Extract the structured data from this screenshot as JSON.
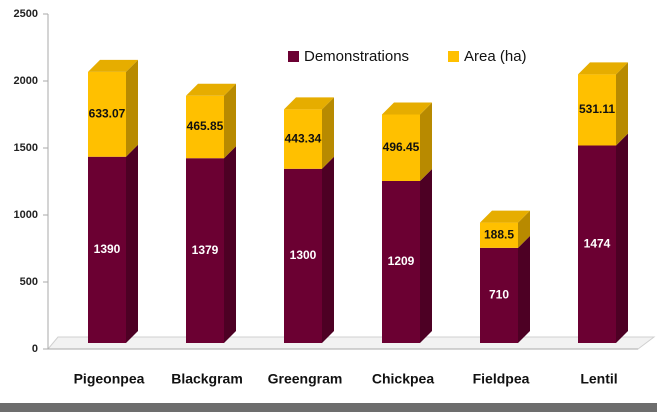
{
  "chart_data": {
    "type": "bar",
    "stacked": true,
    "categories": [
      "Pigeonpea",
      "Blackgram",
      "Greengram",
      "Chickpea",
      "Fieldpea",
      "Lentil"
    ],
    "series": [
      {
        "name": "Demonstrations",
        "color": "#6b0032",
        "values": [
          1390,
          1379,
          1300,
          1209,
          710,
          1474
        ]
      },
      {
        "name": "Area (ha)",
        "color": "#ffc000",
        "values": [
          633.07,
          465.85,
          443.34,
          496.45,
          188.5,
          531.11
        ]
      }
    ],
    "ylim": [
      0,
      2500
    ],
    "yticks": [
      0,
      500,
      1000,
      1500,
      2000,
      2500
    ],
    "grid": false,
    "legend": "top"
  }
}
